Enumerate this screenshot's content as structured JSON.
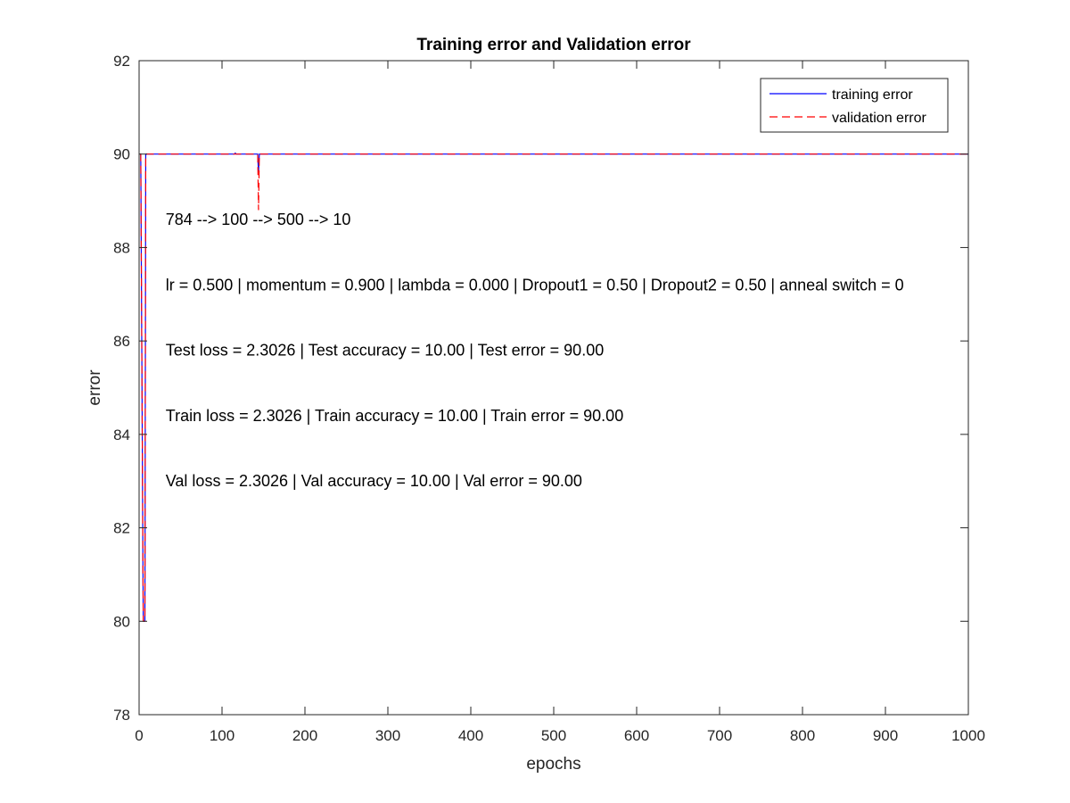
{
  "chart_data": {
    "type": "line",
    "title": "Training error and Validation error",
    "xlabel": "epochs",
    "ylabel": "error",
    "xlim": [
      0,
      1000
    ],
    "ylim": [
      78,
      92
    ],
    "xticks": [
      0,
      100,
      200,
      300,
      400,
      500,
      600,
      700,
      800,
      900,
      1000
    ],
    "yticks": [
      78,
      80,
      82,
      84,
      86,
      88,
      90,
      92
    ],
    "grid": false,
    "legend_position": "top-right",
    "series": [
      {
        "name": "training error",
        "color": "#0000ff",
        "dash": "solid",
        "points": [
          [
            1,
            90
          ],
          [
            2,
            90
          ],
          [
            5,
            80
          ],
          [
            6,
            80
          ],
          [
            7,
            80
          ],
          [
            8,
            90
          ],
          [
            9,
            90
          ],
          [
            115,
            90
          ],
          [
            116,
            90.02
          ],
          [
            117,
            90
          ],
          [
            143,
            90
          ],
          [
            144,
            89.6
          ],
          [
            145,
            90
          ],
          [
            1000,
            90
          ]
        ]
      },
      {
        "name": "validation error",
        "color": "#ff0000",
        "dash": "dashed",
        "points": [
          [
            1,
            90
          ],
          [
            2,
            90
          ],
          [
            5,
            80
          ],
          [
            6,
            80
          ],
          [
            7,
            80
          ],
          [
            8,
            90
          ],
          [
            9,
            90
          ],
          [
            143,
            90
          ],
          [
            144,
            88.8
          ],
          [
            145,
            90
          ],
          [
            1000,
            90
          ]
        ]
      }
    ],
    "annotations": [
      {
        "text": "784 --> 100 --> 500 --> 10",
        "x": 32,
        "y": 88.6
      },
      {
        "text": "lr = 0.500 | momentum = 0.900 | lambda = 0.000 | Dropout1 = 0.50 | Dropout2 = 0.50 | anneal switch = 0",
        "x": 32,
        "y": 87.2
      },
      {
        "text": "Test loss = 2.3026 | Test accuracy = 10.00 | Test error = 90.00",
        "x": 32,
        "y": 85.8
      },
      {
        "text": "Train loss = 2.3026 | Train accuracy = 10.00 | Train error = 90.00",
        "x": 32,
        "y": 84.4
      },
      {
        "text": "Val loss = 2.3026 | Val accuracy = 10.00 | Val error = 90.00",
        "x": 32,
        "y": 83.0
      }
    ]
  }
}
